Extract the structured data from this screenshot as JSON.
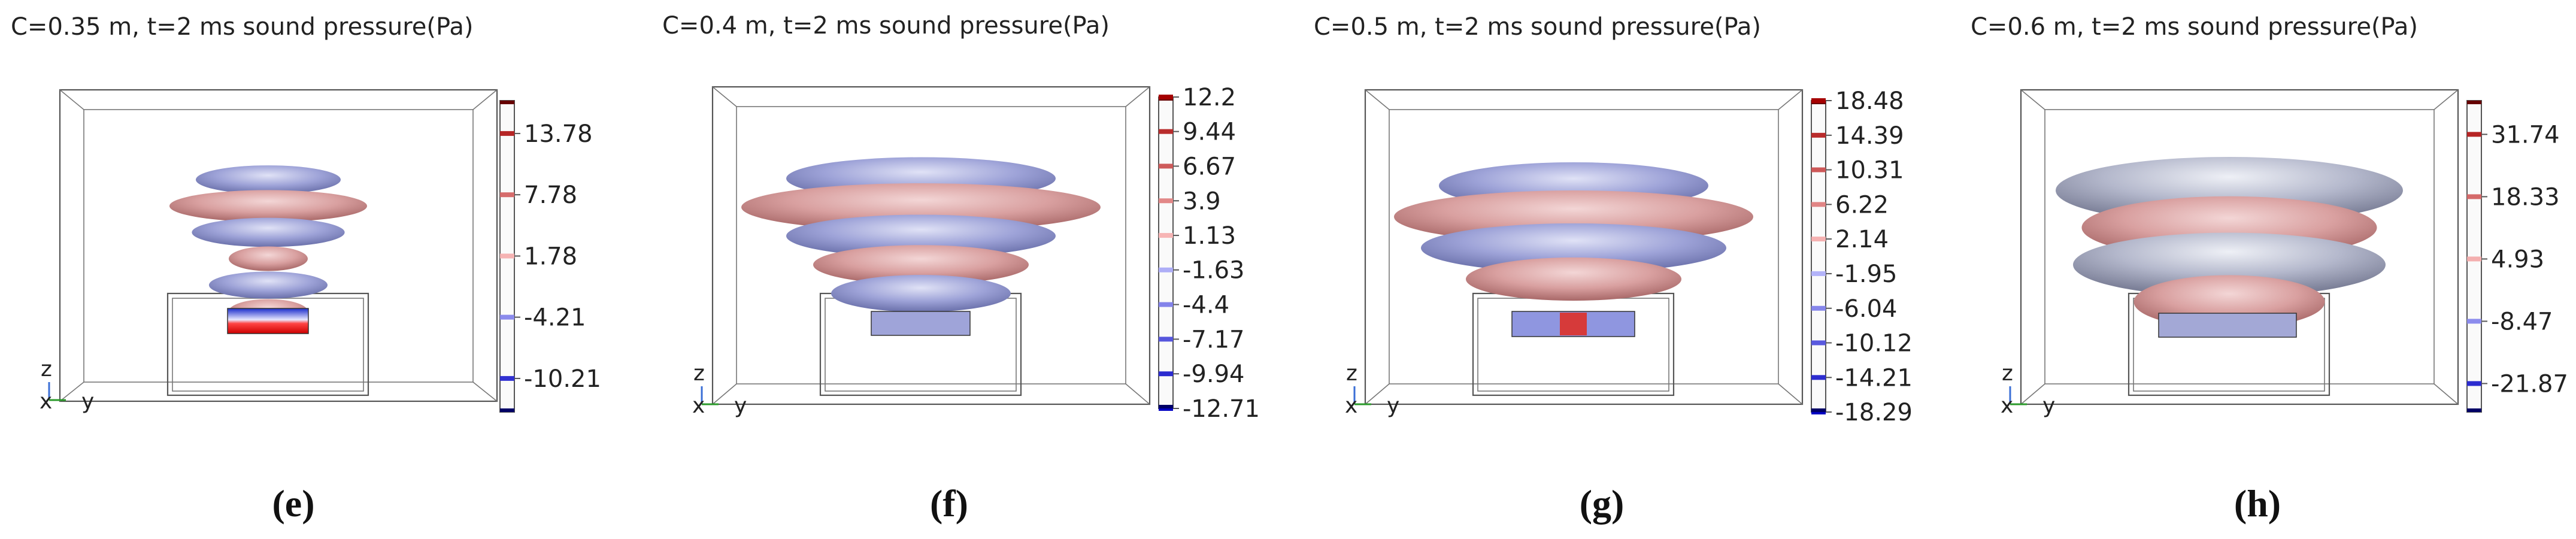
{
  "panels": [
    {
      "id": "e",
      "title": "C=0.35 m, t=2 ms sound pressure(Pa)",
      "caption": "(e)",
      "colorbar_ticks": [
        "13.78",
        "7.78",
        "1.78",
        "-4.21",
        "-10.21"
      ],
      "colorbar_range": [
        -13.5,
        17.0
      ],
      "lobes": [
        {
          "color": "blue",
          "size": 0.55
        },
        {
          "color": "red",
          "size": 0.75
        },
        {
          "color": "blue",
          "size": 0.58
        },
        {
          "color": "red",
          "size": 0.3
        },
        {
          "color": "blue",
          "size": 0.45
        },
        {
          "color": "red",
          "size": 0.3
        }
      ]
    },
    {
      "id": "f",
      "title": "C=0.4 m, t=2 ms sound pressure(Pa)",
      "caption": "(f)",
      "colorbar_ticks": [
        "12.2",
        "9.44",
        "6.67",
        "3.9",
        "1.13",
        "-1.63",
        "-4.4",
        "-7.17",
        "-9.94",
        "-12.71"
      ],
      "colorbar_range": [
        -12.71,
        12.2
      ],
      "lobes": [
        {
          "color": "blue",
          "size": 0.75
        },
        {
          "color": "red",
          "size": 1.0
        },
        {
          "color": "blue",
          "size": 0.75
        },
        {
          "color": "red",
          "size": 0.6
        },
        {
          "color": "blue",
          "size": 0.5
        }
      ]
    },
    {
      "id": "g",
      "title": "C=0.5 m, t=2 ms sound pressure(Pa)",
      "caption": "(g)",
      "colorbar_ticks": [
        "18.48",
        "14.39",
        "10.31",
        "6.22",
        "2.14",
        "-1.95",
        "-6.04",
        "-10.12",
        "-14.21",
        "-18.29"
      ],
      "colorbar_range": [
        -18.29,
        18.48
      ],
      "lobes": [
        {
          "color": "blue",
          "size": 0.75
        },
        {
          "color": "red",
          "size": 1.0
        },
        {
          "color": "blue",
          "size": 0.85
        },
        {
          "color": "red",
          "size": 0.6
        }
      ]
    },
    {
      "id": "h",
      "title": "C=0.6 m, t=2 ms sound pressure(Pa)",
      "caption": "(h)",
      "colorbar_ticks": [
        "31.74",
        "18.33",
        "4.93",
        "-8.47",
        "-21.87"
      ],
      "colorbar_range": [
        -28.0,
        39.0
      ],
      "lobes": [
        {
          "color": "grey",
          "size": 1.0
        },
        {
          "color": "red",
          "size": 0.85
        },
        {
          "color": "grey",
          "size": 0.9
        },
        {
          "color": "red",
          "size": 0.55
        }
      ]
    }
  ],
  "axis_triad": {
    "z": "z",
    "x": "x",
    "y": "y"
  },
  "colors": {
    "red_lobe": "#d9a0a0",
    "blue_lobe": "#9ea3d8",
    "grey_lobe": "#b4b8cc",
    "colorbar_red": "#cc0000",
    "colorbar_blue": "#0000cc"
  }
}
